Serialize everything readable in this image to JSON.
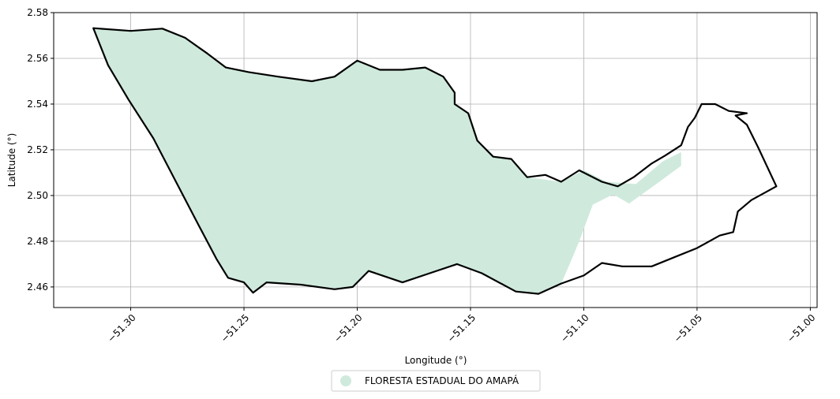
{
  "chart_data": {
    "type": "map",
    "xlabel": "Longitude (°)",
    "ylabel": "Latitude (°)",
    "xlim": [
      -51.334,
      -50.997
    ],
    "ylim": [
      2.451,
      2.58
    ],
    "x_ticks": [
      -51.3,
      -51.25,
      -51.2,
      -51.15,
      -51.1,
      -51.05,
      -51.0
    ],
    "x_tick_labels": [
      "−51.30",
      "−51.25",
      "−51.20",
      "−51.15",
      "−51.10",
      "−51.05",
      "−51.00"
    ],
    "y_ticks": [
      2.46,
      2.48,
      2.5,
      2.52,
      2.54,
      2.56,
      2.58
    ],
    "y_tick_labels": [
      "2.46",
      "2.48",
      "2.50",
      "2.52",
      "2.54",
      "2.56",
      "2.58"
    ],
    "grid": true,
    "legend": {
      "placement": "bottom-center",
      "entries": [
        {
          "label": "FLORESTA ESTADUAL DO AMAPÁ",
          "color": "#cfeadd"
        }
      ]
    },
    "colors": {
      "fill": "#cfeadd",
      "outline": "#000000",
      "grid": "#b0b0b0"
    },
    "fill_polygon": [
      [
        -51.3165,
        2.5732
      ],
      [
        -51.31,
        2.557
      ],
      [
        -51.301,
        2.542
      ],
      [
        -51.29,
        2.525
      ],
      [
        -51.28,
        2.506
      ],
      [
        -51.27,
        2.487
      ],
      [
        -51.262,
        2.472
      ],
      [
        -51.257,
        2.464
      ],
      [
        -51.25,
        2.462
      ],
      [
        -51.246,
        2.4575
      ],
      [
        -51.24,
        2.462
      ],
      [
        -51.225,
        2.461
      ],
      [
        -51.21,
        2.459
      ],
      [
        -51.202,
        2.46
      ],
      [
        -51.195,
        2.467
      ],
      [
        -51.18,
        2.462
      ],
      [
        -51.168,
        2.466
      ],
      [
        -51.156,
        2.47
      ],
      [
        -51.145,
        2.466
      ],
      [
        -51.13,
        2.458
      ],
      [
        -51.12,
        2.457
      ],
      [
        -51.11,
        2.4615
      ],
      [
        -51.106,
        2.4705
      ],
      [
        -51.102,
        2.48
      ],
      [
        -51.096,
        2.496
      ],
      [
        -51.087,
        2.5005
      ],
      [
        -51.08,
        2.4965
      ],
      [
        -51.068,
        2.505
      ],
      [
        -51.057,
        2.513
      ],
      [
        -51.057,
        2.519
      ],
      [
        -51.065,
        2.515
      ],
      [
        -51.077,
        2.505
      ],
      [
        -51.09,
        2.506
      ],
      [
        -51.1,
        2.511
      ],
      [
        -51.11,
        2.506
      ],
      [
        -51.125,
        2.508
      ],
      [
        -51.133,
        2.516
      ],
      [
        -51.14,
        2.517
      ],
      [
        -51.147,
        2.524
      ],
      [
        -51.151,
        2.536
      ],
      [
        -51.157,
        2.54
      ],
      [
        -51.157,
        2.545
      ],
      [
        -51.162,
        2.552
      ],
      [
        -51.17,
        2.556
      ],
      [
        -51.18,
        2.555
      ],
      [
        -51.19,
        2.555
      ],
      [
        -51.2,
        2.559
      ],
      [
        -51.21,
        2.552
      ],
      [
        -51.22,
        2.55
      ],
      [
        -51.235,
        2.552
      ],
      [
        -51.248,
        2.554
      ],
      [
        -51.258,
        2.556
      ],
      [
        -51.266,
        2.562
      ],
      [
        -51.276,
        2.569
      ],
      [
        -51.286,
        2.573
      ],
      [
        -51.3,
        2.572
      ]
    ],
    "outline_polygon": [
      [
        -51.3165,
        2.5732
      ],
      [
        -51.31,
        2.557
      ],
      [
        -51.301,
        2.542
      ],
      [
        -51.29,
        2.525
      ],
      [
        -51.28,
        2.506
      ],
      [
        -51.27,
        2.487
      ],
      [
        -51.262,
        2.472
      ],
      [
        -51.257,
        2.464
      ],
      [
        -51.25,
        2.462
      ],
      [
        -51.246,
        2.4575
      ],
      [
        -51.24,
        2.462
      ],
      [
        -51.225,
        2.461
      ],
      [
        -51.21,
        2.459
      ],
      [
        -51.202,
        2.46
      ],
      [
        -51.195,
        2.467
      ],
      [
        -51.18,
        2.462
      ],
      [
        -51.168,
        2.466
      ],
      [
        -51.156,
        2.47
      ],
      [
        -51.145,
        2.466
      ],
      [
        -51.13,
        2.458
      ],
      [
        -51.12,
        2.457
      ],
      [
        -51.11,
        2.4615
      ],
      [
        -51.1,
        2.465
      ],
      [
        -51.092,
        2.4705
      ],
      [
        -51.083,
        2.469
      ],
      [
        -51.07,
        2.469
      ],
      [
        -51.06,
        2.473
      ],
      [
        -51.05,
        2.477
      ],
      [
        -51.04,
        2.4825
      ],
      [
        -51.034,
        2.484
      ],
      [
        -51.032,
        2.493
      ],
      [
        -51.026,
        2.498
      ],
      [
        -51.015,
        2.504
      ],
      [
        -51.023,
        2.521
      ],
      [
        -51.028,
        2.531
      ],
      [
        -51.033,
        2.535
      ],
      [
        -51.028,
        2.536
      ],
      [
        -51.036,
        2.537
      ],
      [
        -51.042,
        2.54
      ],
      [
        -51.048,
        2.54
      ],
      [
        -51.051,
        2.534
      ],
      [
        -51.054,
        2.53
      ],
      [
        -51.057,
        2.522
      ],
      [
        -51.064,
        2.5175
      ],
      [
        -51.07,
        2.514
      ],
      [
        -51.078,
        2.508
      ],
      [
        -51.085,
        2.504
      ],
      [
        -51.092,
        2.506
      ],
      [
        -51.102,
        2.511
      ],
      [
        -51.11,
        2.506
      ],
      [
        -51.117,
        2.509
      ],
      [
        -51.125,
        2.508
      ],
      [
        -51.132,
        2.516
      ],
      [
        -51.14,
        2.517
      ],
      [
        -51.147,
        2.524
      ],
      [
        -51.151,
        2.536
      ],
      [
        -51.157,
        2.54
      ],
      [
        -51.157,
        2.545
      ],
      [
        -51.162,
        2.552
      ],
      [
        -51.17,
        2.556
      ],
      [
        -51.18,
        2.555
      ],
      [
        -51.19,
        2.555
      ],
      [
        -51.2,
        2.559
      ],
      [
        -51.21,
        2.552
      ],
      [
        -51.22,
        2.55
      ],
      [
        -51.235,
        2.552
      ],
      [
        -51.248,
        2.554
      ],
      [
        -51.258,
        2.556
      ],
      [
        -51.266,
        2.562
      ],
      [
        -51.276,
        2.569
      ],
      [
        -51.286,
        2.573
      ],
      [
        -51.3,
        2.572
      ]
    ]
  }
}
